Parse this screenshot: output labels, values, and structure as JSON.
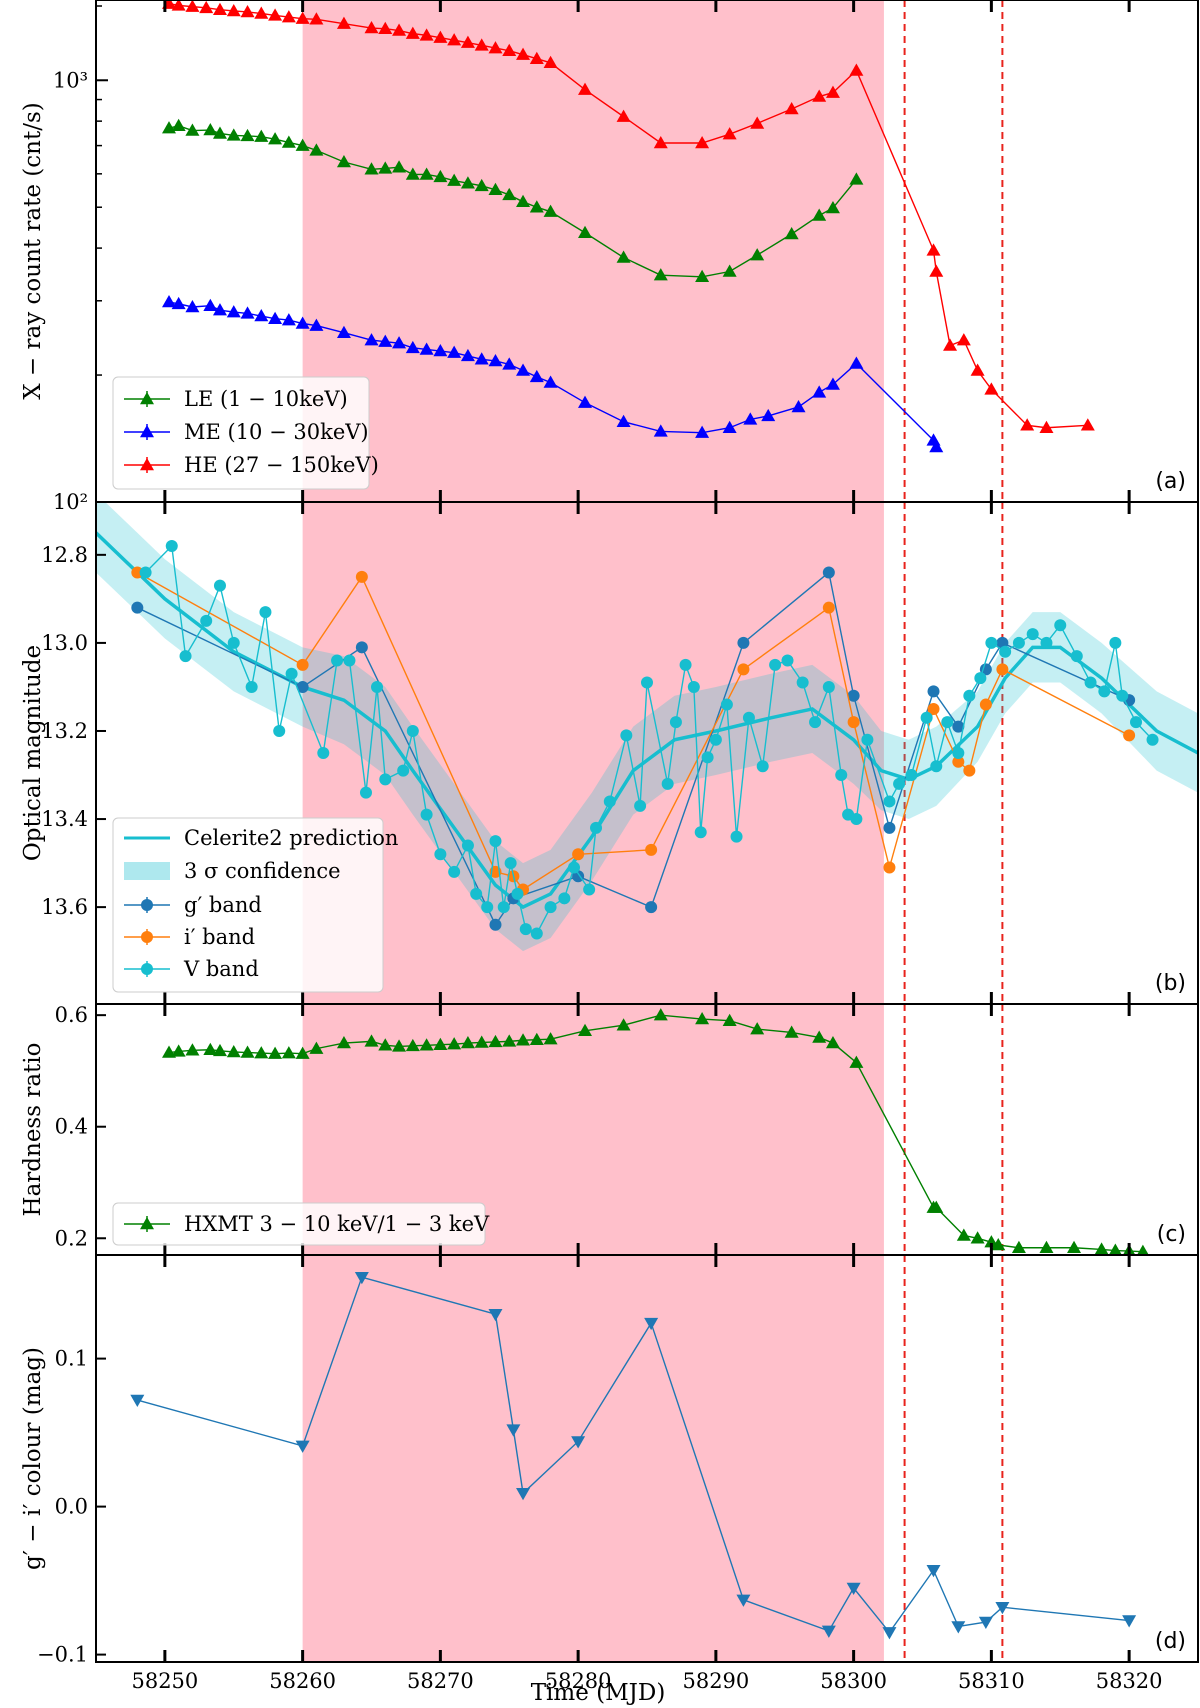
{
  "figure": {
    "x_label": "Time (MJD)",
    "x_range": [
      58245,
      58325
    ],
    "x_ticks": [
      "58250",
      "58260",
      "58270",
      "58280",
      "58290",
      "58300",
      "58310",
      "58320"
    ]
  },
  "shaded_region": {
    "x_range": [
      58260,
      58302.2
    ],
    "color": "#ffc0cb"
  },
  "vlines": [
    58303.7,
    58310.8
  ],
  "chart_data": [
    {
      "type": "line",
      "panel": "(a)",
      "tag": "(a)",
      "ylabel": "X − ray count rate (cnt/s)",
      "yscale": "log",
      "ylim": [
        100,
        1550
      ],
      "y_ticks": [
        {
          "value": 1000,
          "label": "10³"
        },
        {
          "value": 100,
          "label": "10²"
        }
      ],
      "series": [
        {
          "name": "LE (1 − 10keV)",
          "color": "#008000",
          "marker": "triangle-up",
          "x": [
            58250.3,
            58251,
            58252,
            58253.3,
            58254,
            58255,
            58256,
            58257,
            58258,
            58259,
            58260,
            58261,
            58263,
            58265,
            58266,
            58267,
            58268,
            58269,
            58270,
            58271,
            58272,
            58273,
            58274,
            58275,
            58276,
            58277,
            58278,
            58280.5,
            58283.3,
            58286,
            58289,
            58291,
            58293,
            58295.5,
            58297.5,
            58298.5,
            58300.2
          ],
          "y": [
            770,
            780,
            760,
            762,
            748,
            740,
            738,
            735,
            725,
            712,
            700,
            682,
            640,
            615,
            618,
            622,
            598,
            598,
            590,
            578,
            570,
            562,
            550,
            535,
            515,
            500,
            488,
            435,
            380,
            345,
            342,
            352,
            385,
            432,
            478,
            498,
            582
          ]
        },
        {
          "name": "ME (10 − 30keV)",
          "color": "#0000ff",
          "marker": "triangle-up",
          "x": [
            58250.3,
            58251,
            58252,
            58253.3,
            58254,
            58255,
            58256,
            58257,
            58258,
            58259,
            58260,
            58261,
            58263,
            58265,
            58266,
            58267,
            58268,
            58269,
            58270,
            58271,
            58272,
            58273,
            58274,
            58275,
            58276,
            58277,
            58278,
            58280.5,
            58283.3,
            58286,
            58289,
            58291,
            58292.5,
            58293.8,
            58296,
            58297.5,
            58298.5,
            58300.2,
            58305.8,
            58306
          ],
          "y": [
            298,
            295,
            290,
            292,
            285,
            282,
            280,
            276,
            272,
            270,
            265,
            262,
            252,
            242,
            240,
            238,
            232,
            230,
            228,
            226,
            222,
            218,
            216,
            212,
            205,
            198,
            192,
            172,
            155,
            147,
            146,
            150,
            157,
            160,
            168,
            182,
            190,
            213,
            140,
            135
          ]
        },
        {
          "name": "HE (27 − 150keV)",
          "color": "#ff0000",
          "marker": "triangle-up",
          "x": [
            58250.3,
            58251,
            58252,
            58253,
            58254,
            58255,
            58256,
            58257,
            58258,
            58259,
            58260,
            58261,
            58263,
            58265,
            58266,
            58267,
            58268,
            58269,
            58270,
            58271,
            58272,
            58273,
            58274,
            58275,
            58276,
            58277,
            58278,
            58280.5,
            58283.3,
            58286,
            58289,
            58291,
            58293,
            58295.5,
            58297.5,
            58298.5,
            58300.2,
            58305.8,
            58306,
            58307,
            58308,
            58309,
            58310,
            58312.6,
            58314,
            58317
          ],
          "y": [
            1520,
            1505,
            1495,
            1485,
            1470,
            1460,
            1452,
            1440,
            1425,
            1412,
            1400,
            1395,
            1362,
            1330,
            1325,
            1312,
            1290,
            1278,
            1262,
            1245,
            1228,
            1210,
            1192,
            1175,
            1150,
            1125,
            1100,
            950,
            820,
            710,
            710,
            745,
            790,
            855,
            915,
            935,
            1055,
            395,
            352,
            235,
            242,
            205,
            185,
            152,
            150,
            152
          ]
        }
      ]
    },
    {
      "type": "line",
      "panel": "(b)",
      "tag": "(b)",
      "ylabel": "Optical magnitude",
      "ylim": [
        12.68,
        13.82
      ],
      "y_inverted": true,
      "y_ticks": [
        "12.8",
        "13.0",
        "13.2",
        "13.4",
        "13.6"
      ],
      "prediction": {
        "name": "Celerite2 prediction",
        "band_name": "3 σ confidence",
        "color": "#17becf",
        "x": [
          58245,
          58250,
          58255,
          58260,
          58263,
          58266,
          58268,
          58271,
          58274,
          58276,
          58278,
          58281,
          58284,
          58287,
          58290,
          58294,
          58297,
          58300,
          58302,
          58304,
          58306,
          58309,
          58311,
          58313,
          58315,
          58318,
          58322,
          58325
        ],
        "y": [
          12.75,
          12.9,
          13.02,
          13.1,
          13.13,
          13.2,
          13.29,
          13.42,
          13.55,
          13.6,
          13.57,
          13.44,
          13.29,
          13.22,
          13.2,
          13.17,
          13.15,
          13.22,
          13.29,
          13.31,
          13.28,
          13.19,
          13.08,
          13.01,
          13.01,
          13.08,
          13.2,
          13.25
        ],
        "sigma": [
          0.09,
          0.09,
          0.09,
          0.09,
          0.1,
          0.1,
          0.1,
          0.1,
          0.1,
          0.1,
          0.1,
          0.1,
          0.1,
          0.1,
          0.1,
          0.1,
          0.1,
          0.1,
          0.09,
          0.09,
          0.09,
          0.08,
          0.08,
          0.08,
          0.08,
          0.08,
          0.09,
          0.09
        ]
      },
      "series": [
        {
          "name": "g′ band",
          "color": "#1f77b4",
          "x": [
            58248,
            58260,
            58264.3,
            58274,
            58275.3,
            58280,
            58285.3,
            58292,
            58298.2,
            58300,
            58302.6,
            58305.8,
            58307.6,
            58309.6,
            58310.8,
            58320
          ],
          "y": [
            12.92,
            13.1,
            13.01,
            13.64,
            13.58,
            13.53,
            13.6,
            13.0,
            12.84,
            13.12,
            13.42,
            13.11,
            13.19,
            13.06,
            13.0,
            13.13
          ]
        },
        {
          "name": "i′ band",
          "color": "#ff7f0e",
          "x": [
            58248,
            58260,
            58264.3,
            58274,
            58275.3,
            58276,
            58280,
            58285.3,
            58292,
            58298.2,
            58300,
            58302.6,
            58305.8,
            58307.6,
            58308.4,
            58309.6,
            58310.8,
            58320
          ],
          "y": [
            12.84,
            13.05,
            12.85,
            13.52,
            13.53,
            13.56,
            13.48,
            13.47,
            13.06,
            12.92,
            13.18,
            13.51,
            13.15,
            13.27,
            13.29,
            13.14,
            13.06,
            13.21
          ]
        },
        {
          "name": "V band",
          "color": "#17becf",
          "x": [
            58248.6,
            58250.5,
            58251.5,
            58253,
            58254,
            58255,
            58256.3,
            58257.3,
            58258.3,
            58259.2,
            58261.5,
            58262.5,
            58263.4,
            58264.6,
            58265.4,
            58266,
            58267.3,
            58268,
            58269,
            58270,
            58271,
            58272,
            58272.6,
            58273.4,
            58274,
            58274.6,
            58275.1,
            58275.6,
            58276.2,
            58277,
            58278,
            58279,
            58279.7,
            58280.8,
            58281.3,
            58282.3,
            58283.5,
            58284.5,
            58285,
            58286.5,
            58287.1,
            58287.8,
            58288.4,
            58288.9,
            58289.4,
            58290,
            58290.8,
            58291.5,
            58292.4,
            58293.4,
            58294.3,
            58295.2,
            58296.3,
            58297.2,
            58298.2,
            58299.1,
            58299.6,
            58300.2,
            58301,
            58302.6,
            58303.3,
            58304.2,
            58305.3,
            58306,
            58306.8,
            58307.6,
            58308.4,
            58309.2,
            58310,
            58311,
            58312,
            58313,
            58314,
            58315,
            58316.2,
            58317.2,
            58318.2,
            58319,
            58319.5,
            58320.5,
            58321.7
          ],
          "y": [
            12.84,
            12.78,
            13.03,
            12.95,
            12.87,
            13.0,
            13.1,
            12.93,
            13.2,
            13.07,
            13.25,
            13.04,
            13.04,
            13.34,
            13.1,
            13.31,
            13.29,
            13.2,
            13.39,
            13.48,
            13.52,
            13.46,
            13.57,
            13.6,
            13.45,
            13.6,
            13.5,
            13.57,
            13.65,
            13.66,
            13.6,
            13.58,
            13.51,
            13.56,
            13.42,
            13.36,
            13.21,
            13.37,
            13.09,
            13.32,
            13.18,
            13.05,
            13.1,
            13.43,
            13.26,
            13.22,
            13.14,
            13.44,
            13.17,
            13.28,
            13.05,
            13.04,
            13.09,
            13.18,
            13.1,
            13.3,
            13.39,
            13.4,
            13.22,
            13.36,
            13.32,
            13.3,
            13.17,
            13.28,
            13.18,
            13.25,
            13.12,
            13.08,
            13.0,
            13.02,
            13.0,
            12.98,
            13.0,
            12.96,
            13.03,
            13.09,
            13.11,
            13.0,
            13.12,
            13.18,
            13.22
          ]
        }
      ]
    },
    {
      "type": "line",
      "panel": "(c)",
      "tag": "(c)",
      "ylabel": "Hardness ratio",
      "ylim": [
        0.17,
        0.62
      ],
      "y_ticks": [
        "0.2",
        "0.4",
        "0.6"
      ],
      "series": [
        {
          "name": "HXMT 3 − 10 keV/1 − 3 keV",
          "color": "#008000",
          "marker": "triangle-up",
          "x": [
            58250.3,
            58251,
            58252,
            58253.3,
            58254,
            58255,
            58256,
            58257,
            58258,
            58259,
            58260,
            58261,
            58263,
            58265,
            58266,
            58267,
            58268,
            58269,
            58270,
            58271,
            58272,
            58273,
            58274,
            58275,
            58276,
            58277,
            58278,
            58280.5,
            58283.3,
            58286,
            58289,
            58291,
            58293,
            58295.5,
            58297.5,
            58298.5,
            58300.2,
            58305.8,
            58306,
            58308,
            58309,
            58310,
            58310.5,
            58312,
            58314,
            58316,
            58318,
            58319,
            58320,
            58321
          ],
          "y": [
            0.533,
            0.535,
            0.537,
            0.538,
            0.536,
            0.534,
            0.533,
            0.532,
            0.531,
            0.532,
            0.531,
            0.54,
            0.55,
            0.553,
            0.546,
            0.544,
            0.545,
            0.546,
            0.547,
            0.548,
            0.55,
            0.551,
            0.552,
            0.553,
            0.555,
            0.556,
            0.557,
            0.572,
            0.582,
            0.6,
            0.593,
            0.59,
            0.575,
            0.569,
            0.56,
            0.55,
            0.515,
            0.255,
            0.255,
            0.205,
            0.2,
            0.193,
            0.188,
            0.183,
            0.183,
            0.183,
            0.18,
            0.178,
            0.177,
            0.176
          ]
        }
      ]
    },
    {
      "type": "line",
      "panel": "(d)",
      "tag": "(d)",
      "ylabel": "g′ − i′ colour (mag)",
      "ylim": [
        -0.105,
        0.17
      ],
      "y_ticks": [
        "0.1",
        "0.0",
        "−0.1"
      ],
      "series": [
        {
          "name": "g′ − i′",
          "color": "#1f77b4",
          "marker": "triangle-down",
          "x": [
            58248,
            58260,
            58264.3,
            58274,
            58275.3,
            58276,
            58280,
            58285.3,
            58292,
            58298.2,
            58300,
            58302.6,
            58305.8,
            58307.6,
            58309.6,
            58310.8,
            58320
          ],
          "y": [
            0.072,
            0.041,
            0.155,
            0.13,
            0.052,
            0.009,
            0.044,
            0.124,
            -0.063,
            -0.084,
            -0.055,
            -0.085,
            -0.043,
            -0.081,
            -0.078,
            -0.068,
            -0.077
          ]
        }
      ]
    }
  ]
}
